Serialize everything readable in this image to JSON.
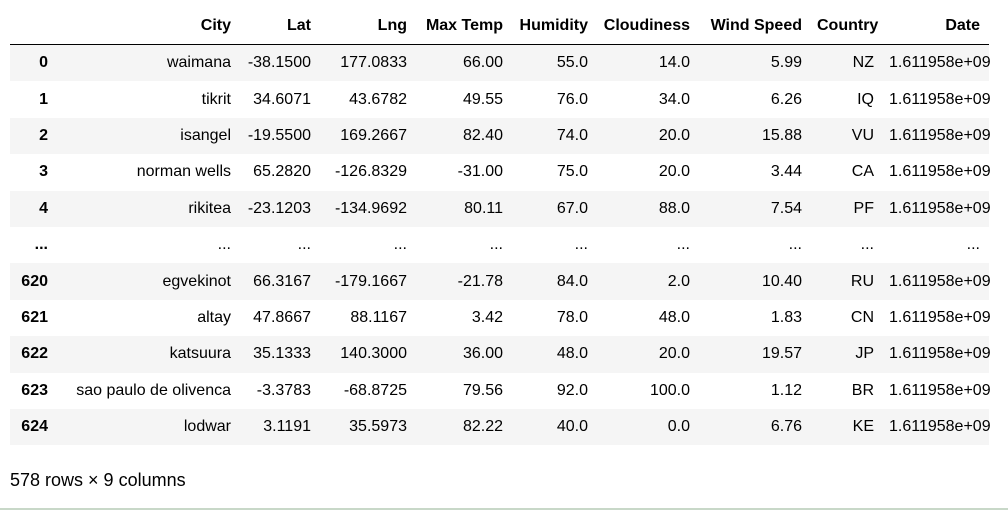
{
  "table": {
    "columns": [
      "",
      "City",
      "Lat",
      "Lng",
      "Max Temp",
      "Humidity",
      "Cloudiness",
      "Wind Speed",
      "Country",
      "Date"
    ],
    "rows": [
      [
        "0",
        "waimana",
        "-38.1500",
        "177.0833",
        "66.00",
        "55.0",
        "14.0",
        "5.99",
        "NZ",
        "1.611958e+09"
      ],
      [
        "1",
        "tikrit",
        "34.6071",
        "43.6782",
        "49.55",
        "76.0",
        "34.0",
        "6.26",
        "IQ",
        "1.611958e+09"
      ],
      [
        "2",
        "isangel",
        "-19.5500",
        "169.2667",
        "82.40",
        "74.0",
        "20.0",
        "15.88",
        "VU",
        "1.611958e+09"
      ],
      [
        "3",
        "norman wells",
        "65.2820",
        "-126.8329",
        "-31.00",
        "75.0",
        "20.0",
        "3.44",
        "CA",
        "1.611958e+09"
      ],
      [
        "4",
        "rikitea",
        "-23.1203",
        "-134.9692",
        "80.11",
        "67.0",
        "88.0",
        "7.54",
        "PF",
        "1.611958e+09"
      ],
      [
        "...",
        "...",
        "...",
        "...",
        "...",
        "...",
        "...",
        "...",
        "...",
        "..."
      ],
      [
        "620",
        "egvekinot",
        "66.3167",
        "-179.1667",
        "-21.78",
        "84.0",
        "2.0",
        "10.40",
        "RU",
        "1.611958e+09"
      ],
      [
        "621",
        "altay",
        "47.8667",
        "88.1167",
        "3.42",
        "78.0",
        "48.0",
        "1.83",
        "CN",
        "1.611958e+09"
      ],
      [
        "622",
        "katsuura",
        "35.1333",
        "140.3000",
        "36.00",
        "48.0",
        "20.0",
        "19.57",
        "JP",
        "1.611958e+09"
      ],
      [
        "623",
        "sao paulo de olivenca",
        "-3.3783",
        "-68.8725",
        "79.56",
        "92.0",
        "100.0",
        "1.12",
        "BR",
        "1.611958e+09"
      ],
      [
        "624",
        "lodwar",
        "3.1191",
        "35.5973",
        "82.22",
        "40.0",
        "0.0",
        "6.76",
        "KE",
        "1.611958e+09"
      ]
    ]
  },
  "summary": "578 rows × 9 columns"
}
